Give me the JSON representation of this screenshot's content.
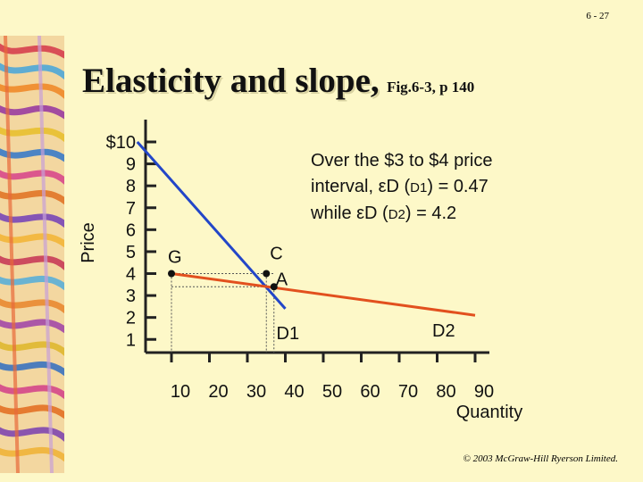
{
  "slide_number": "6 - 27",
  "title": "Elasticity and slope,",
  "title_ref": "Fig.6-3, p 140",
  "note": {
    "line1": "Over the $3 to $4 price",
    "line2_prefix": "interval, εD (",
    "line2_curve": "D1",
    "line2_suffix": ") = 0.47",
    "line3_prefix": "while εD (",
    "line3_curve": "D2",
    "line3_suffix": ") = 4.2"
  },
  "footer": "© 2003 McGraw-Hill Ryerson Limited.",
  "colors": {
    "d1": "#2346c8",
    "d2": "#e2501e",
    "guides": "#555555",
    "background": "#fdf8c8"
  },
  "chart_data": {
    "type": "line",
    "ylabel": "Price",
    "xlabel": "Quantity",
    "y_ticks": [
      "$10",
      "9",
      "8",
      "7",
      "6",
      "5",
      "4",
      "3",
      "2",
      "1"
    ],
    "x_ticks": [
      "10",
      "20",
      "30",
      "40",
      "50",
      "60",
      "70",
      "80",
      "90"
    ],
    "xlim": [
      0,
      90
    ],
    "ylim": [
      0,
      10
    ],
    "series": [
      {
        "name": "D1",
        "x": [
          1,
          40
        ],
        "y": [
          10,
          2.4
        ]
      },
      {
        "name": "D2",
        "x": [
          10,
          90
        ],
        "y": [
          4.0,
          2.1
        ]
      }
    ],
    "points": [
      {
        "label": "G",
        "x": 10,
        "y": 4
      },
      {
        "label": "C",
        "x": 35,
        "y": 4
      },
      {
        "label": "A",
        "x": 37,
        "y": 3.4
      }
    ],
    "guides": [
      {
        "from_x": 10,
        "from_y": 4,
        "to_x": 37,
        "to_y": 4
      },
      {
        "from_x": 10,
        "from_y": 3.4,
        "to_x": 37,
        "to_y": 3.4
      }
    ]
  }
}
